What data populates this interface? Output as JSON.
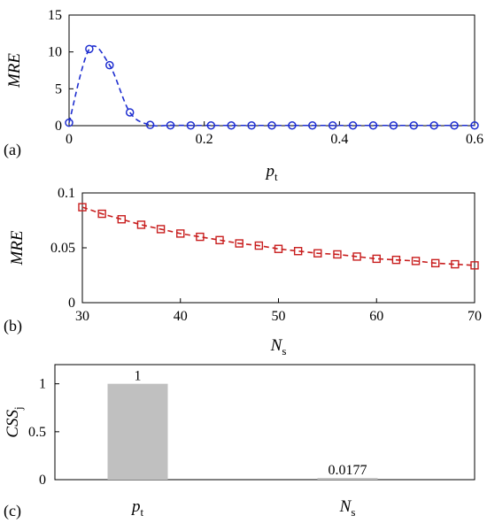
{
  "chart_data": [
    {
      "panel_label": "(a)",
      "type": "scatter",
      "xlabel": {
        "main": "p",
        "sub": "t"
      },
      "ylabel": "MRE",
      "xlim": [
        0,
        0.6
      ],
      "ylim": [
        0,
        15
      ],
      "xticks": [
        "0",
        "0.2",
        "0.4",
        "0.6"
      ],
      "yticks": [
        "0",
        "5",
        "10",
        "15"
      ],
      "xtick_values": [
        0,
        0.2,
        0.4,
        0.6
      ],
      "ytick_values": [
        0,
        5,
        10,
        15
      ],
      "series": [
        {
          "color": "#1f2fd0",
          "marker": "circle",
          "line": "dashed",
          "x": [
            0.0,
            0.03,
            0.06,
            0.09,
            0.12,
            0.15,
            0.18,
            0.21,
            0.24,
            0.27,
            0.3,
            0.33,
            0.36,
            0.39,
            0.42,
            0.45,
            0.48,
            0.51,
            0.54,
            0.57,
            0.6
          ],
          "y": [
            0.4,
            10.4,
            8.2,
            1.8,
            0.1,
            0.05,
            0.03,
            0.03,
            0.03,
            0.03,
            0.03,
            0.03,
            0.03,
            0.03,
            0.03,
            0.03,
            0.03,
            0.03,
            0.03,
            0.03,
            0.03
          ]
        }
      ]
    },
    {
      "panel_label": "(b)",
      "type": "scatter",
      "xlabel": {
        "main": "N",
        "sub": "s"
      },
      "ylabel": "MRE",
      "xlim": [
        30,
        70
      ],
      "ylim": [
        0,
        0.1
      ],
      "xticks": [
        "30",
        "40",
        "50",
        "60",
        "70"
      ],
      "yticks": [
        "0",
        "0.05",
        "0.1"
      ],
      "xtick_values": [
        30,
        40,
        50,
        60,
        70
      ],
      "ytick_values": [
        0,
        0.05,
        0.1
      ],
      "series": [
        {
          "color": "#c81e1e",
          "marker": "square",
          "line": "dashed",
          "x": [
            30,
            32,
            34,
            36,
            38,
            40,
            42,
            44,
            46,
            48,
            50,
            52,
            54,
            56,
            58,
            60,
            62,
            64,
            66,
            68,
            70
          ],
          "y": [
            0.087,
            0.081,
            0.076,
            0.071,
            0.067,
            0.063,
            0.06,
            0.057,
            0.054,
            0.052,
            0.049,
            0.047,
            0.045,
            0.044,
            0.042,
            0.04,
            0.039,
            0.038,
            0.036,
            0.035,
            0.034
          ]
        }
      ]
    },
    {
      "panel_label": "(c)",
      "type": "bar",
      "ylabel": {
        "main": "CSS",
        "sub": "j"
      },
      "ylim": [
        0,
        1.2
      ],
      "yticks": [
        "0",
        "0.5",
        "1"
      ],
      "ytick_values": [
        0,
        0.5,
        1
      ],
      "categories": [
        {
          "main": "p",
          "sub": "t"
        },
        {
          "main": "N",
          "sub": "s"
        }
      ],
      "values": [
        1,
        0.0177
      ],
      "value_labels": [
        "1",
        "0.0177"
      ],
      "bar_color": "#c0c0c0"
    }
  ]
}
